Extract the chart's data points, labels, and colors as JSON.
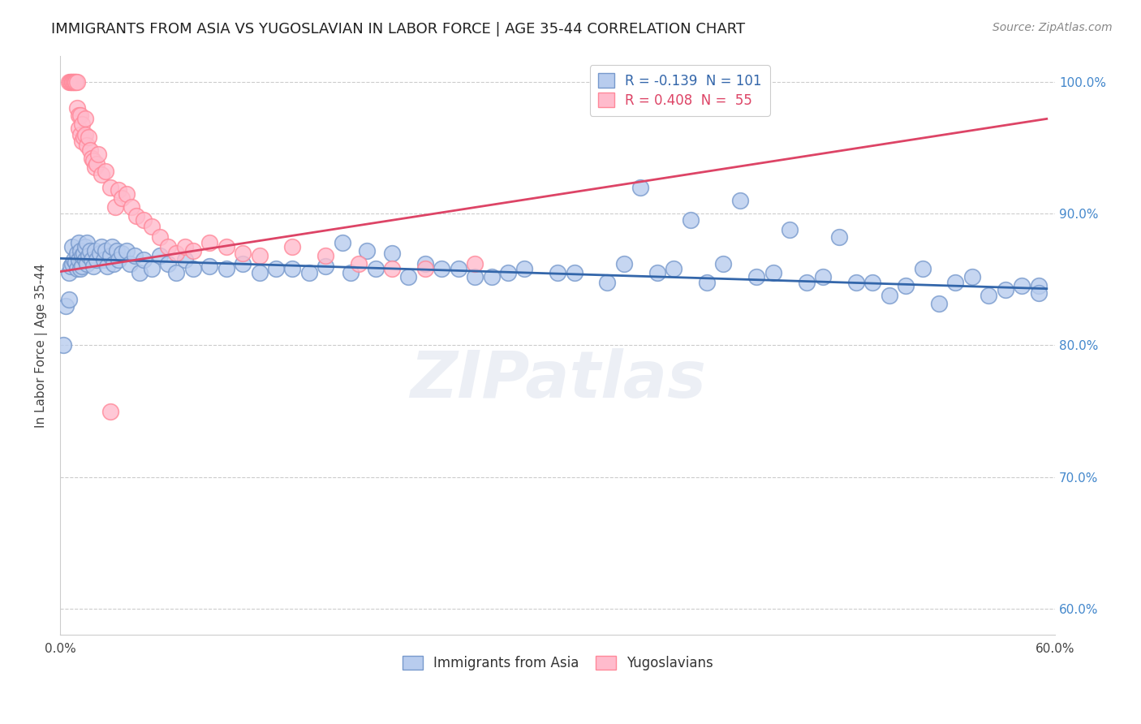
{
  "title": "IMMIGRANTS FROM ASIA VS YUGOSLAVIAN IN LABOR FORCE | AGE 35-44 CORRELATION CHART",
  "source_text": "Source: ZipAtlas.com",
  "ylabel": "In Labor Force | Age 35-44",
  "xlim": [
    0.0,
    0.6
  ],
  "ylim": [
    0.58,
    1.02
  ],
  "yticks": [
    0.6,
    0.7,
    0.8,
    0.9,
    1.0
  ],
  "ytick_labels": [
    "60.0%",
    "70.0%",
    "80.0%",
    "90.0%",
    "100.0%"
  ],
  "xticks": [
    0.0,
    0.1,
    0.2,
    0.3,
    0.4,
    0.5,
    0.6
  ],
  "xtick_labels": [
    "0.0%",
    "",
    "",
    "",
    "",
    "",
    "60.0%"
  ],
  "legend1_label1": "R = -0.139  N = 101",
  "legend1_label2": "R = 0.408  N =  55",
  "legend2_label1": "Immigrants from Asia",
  "legend2_label2": "Yugoslavians",
  "title_fontsize": 13,
  "axis_label_fontsize": 11,
  "tick_fontsize": 11,
  "right_tick_color": "#4488cc",
  "grid_color": "#cccccc",
  "watermark_text": "ZIPatlas",
  "asia_color": "#b8ccee",
  "asia_edge": "#7799cc",
  "yugo_color": "#ffbbcc",
  "yugo_edge": "#ff8899",
  "trend_asia_color": "#3366aa",
  "trend_yugo_color": "#dd4466",
  "asia_x": [
    0.002,
    0.003,
    0.005,
    0.005,
    0.006,
    0.007,
    0.007,
    0.008,
    0.009,
    0.01,
    0.01,
    0.011,
    0.011,
    0.012,
    0.012,
    0.013,
    0.013,
    0.014,
    0.015,
    0.015,
    0.016,
    0.016,
    0.017,
    0.018,
    0.019,
    0.02,
    0.021,
    0.022,
    0.024,
    0.025,
    0.026,
    0.027,
    0.028,
    0.03,
    0.031,
    0.032,
    0.034,
    0.035,
    0.037,
    0.04,
    0.042,
    0.045,
    0.048,
    0.05,
    0.055,
    0.06,
    0.065,
    0.07,
    0.075,
    0.08,
    0.09,
    0.1,
    0.11,
    0.12,
    0.13,
    0.14,
    0.15,
    0.16,
    0.175,
    0.19,
    0.21,
    0.23,
    0.25,
    0.27,
    0.3,
    0.33,
    0.36,
    0.39,
    0.42,
    0.45,
    0.48,
    0.51,
    0.54,
    0.57,
    0.59,
    0.2,
    0.22,
    0.24,
    0.26,
    0.28,
    0.31,
    0.34,
    0.37,
    0.4,
    0.43,
    0.46,
    0.49,
    0.52,
    0.55,
    0.58,
    0.35,
    0.38,
    0.41,
    0.44,
    0.47,
    0.5,
    0.53,
    0.56,
    0.59,
    0.17,
    0.185
  ],
  "asia_y": [
    0.8,
    0.83,
    0.855,
    0.835,
    0.86,
    0.862,
    0.875,
    0.865,
    0.863,
    0.858,
    0.87,
    0.865,
    0.878,
    0.858,
    0.872,
    0.86,
    0.868,
    0.87,
    0.865,
    0.875,
    0.862,
    0.878,
    0.868,
    0.872,
    0.865,
    0.86,
    0.872,
    0.865,
    0.87,
    0.875,
    0.865,
    0.872,
    0.86,
    0.868,
    0.875,
    0.862,
    0.872,
    0.865,
    0.87,
    0.872,
    0.862,
    0.868,
    0.855,
    0.865,
    0.858,
    0.868,
    0.862,
    0.855,
    0.865,
    0.858,
    0.86,
    0.858,
    0.862,
    0.855,
    0.858,
    0.858,
    0.855,
    0.86,
    0.855,
    0.858,
    0.852,
    0.858,
    0.852,
    0.855,
    0.855,
    0.848,
    0.855,
    0.848,
    0.852,
    0.848,
    0.848,
    0.845,
    0.848,
    0.842,
    0.845,
    0.87,
    0.862,
    0.858,
    0.852,
    0.858,
    0.855,
    0.862,
    0.858,
    0.862,
    0.855,
    0.852,
    0.848,
    0.858,
    0.852,
    0.845,
    0.92,
    0.895,
    0.91,
    0.888,
    0.882,
    0.838,
    0.832,
    0.838,
    0.84,
    0.878,
    0.872
  ],
  "yugo_x": [
    0.005,
    0.006,
    0.006,
    0.007,
    0.007,
    0.008,
    0.008,
    0.009,
    0.009,
    0.01,
    0.01,
    0.011,
    0.011,
    0.012,
    0.012,
    0.013,
    0.013,
    0.014,
    0.015,
    0.015,
    0.016,
    0.017,
    0.018,
    0.019,
    0.02,
    0.021,
    0.022,
    0.023,
    0.025,
    0.027,
    0.03,
    0.033,
    0.035,
    0.037,
    0.04,
    0.043,
    0.046,
    0.05,
    0.055,
    0.06,
    0.065,
    0.07,
    0.075,
    0.08,
    0.09,
    0.1,
    0.11,
    0.12,
    0.14,
    0.16,
    0.18,
    0.2,
    0.22,
    0.25,
    0.03
  ],
  "yugo_y": [
    1.0,
    1.0,
    1.0,
    1.0,
    1.0,
    1.0,
    1.0,
    1.0,
    1.0,
    1.0,
    0.98,
    0.975,
    0.965,
    0.96,
    0.975,
    0.968,
    0.955,
    0.958,
    0.96,
    0.972,
    0.952,
    0.958,
    0.948,
    0.942,
    0.94,
    0.935,
    0.938,
    0.945,
    0.93,
    0.932,
    0.92,
    0.905,
    0.918,
    0.912,
    0.915,
    0.905,
    0.898,
    0.895,
    0.89,
    0.882,
    0.875,
    0.87,
    0.875,
    0.872,
    0.878,
    0.875,
    0.87,
    0.868,
    0.875,
    0.868,
    0.862,
    0.858,
    0.858,
    0.862,
    0.75
  ],
  "asia_trend_x": [
    0.0,
    0.595
  ],
  "asia_trend_y": [
    0.866,
    0.843
  ],
  "yugo_trend_x": [
    0.0,
    0.595
  ],
  "yugo_trend_y": [
    0.856,
    0.972
  ]
}
